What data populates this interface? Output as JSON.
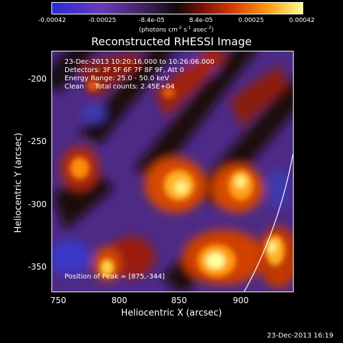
{
  "colorbar": {
    "ticks": [
      "-0.00042",
      "-0.00025",
      "-8.4e-05",
      "8.4e-05",
      "0.00025",
      "0.00042"
    ],
    "unit_prefix": "(photons cm",
    "unit_sup1": "-2",
    "unit_mid": " s",
    "unit_sup2": "-1",
    "unit_mid2": " asec",
    "unit_sup3": "-2",
    "unit_suffix": ")"
  },
  "title": "Reconstructed RHESSI Image",
  "info": {
    "line1": "23-Dec-2013 10:20:16.000 to 10:26:06.000",
    "line2": "Detectors: 3F 5F 6F 7F 8F 9F, Att 0",
    "line3": "Energy Range: 25.0 - 50.0 keV",
    "line4": "Clean     Total counts: 2.45E+04",
    "peak": "Position of Peak = [875,-344]"
  },
  "axes": {
    "xlabel": "Heliocentric X (arcsec)",
    "ylabel": "Heliocentric Y (arcsec)",
    "xticks": [
      "750",
      "800",
      "850",
      "900"
    ],
    "yticks": [
      "-200",
      "-250",
      "-300",
      "-350"
    ]
  },
  "timestamp": "23-Dec-2013 16:19"
}
